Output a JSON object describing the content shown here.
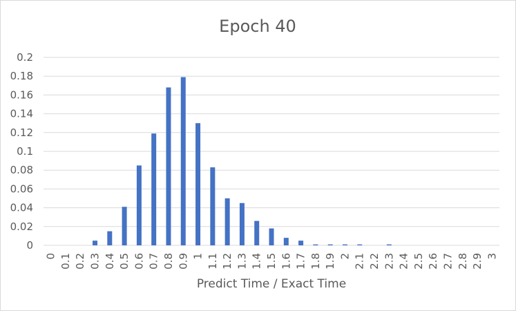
{
  "chart_data": {
    "type": "bar",
    "title": "Epoch 40",
    "xlabel": "Predict Time / Exact Time",
    "ylabel": "",
    "ylim": [
      0,
      0.2
    ],
    "yticks": [
      "0",
      "0.02",
      "0.04",
      "0.06",
      "0.08",
      "0.1",
      "0.12",
      "0.14",
      "0.16",
      "0.18",
      "0.2"
    ],
    "categories": [
      "0",
      "0.1",
      "0.2",
      "0.3",
      "0.4",
      "0.5",
      "0.6",
      "0.7",
      "0.8",
      "0.9",
      "1",
      "1.1",
      "1.2",
      "1.3",
      "1.4",
      "1.5",
      "1.6",
      "1.7",
      "1.8",
      "1.9",
      "2",
      "2.1",
      "2.2",
      "2.3",
      "2.4",
      "2.5",
      "2.6",
      "2.7",
      "2.8",
      "2.9",
      "3"
    ],
    "values": [
      0,
      0,
      0,
      0.005,
      0.015,
      0.041,
      0.085,
      0.119,
      0.168,
      0.179,
      0.13,
      0.083,
      0.05,
      0.045,
      0.026,
      0.018,
      0.008,
      0.005,
      0.001,
      0.001,
      0.001,
      0.001,
      0,
      0.001,
      0,
      0,
      0,
      0,
      0,
      0,
      0
    ],
    "grid": true,
    "legend": "none",
    "colors": {
      "bar": "#4472c4",
      "grid": "#d9d9d9",
      "text": "#595959"
    }
  }
}
